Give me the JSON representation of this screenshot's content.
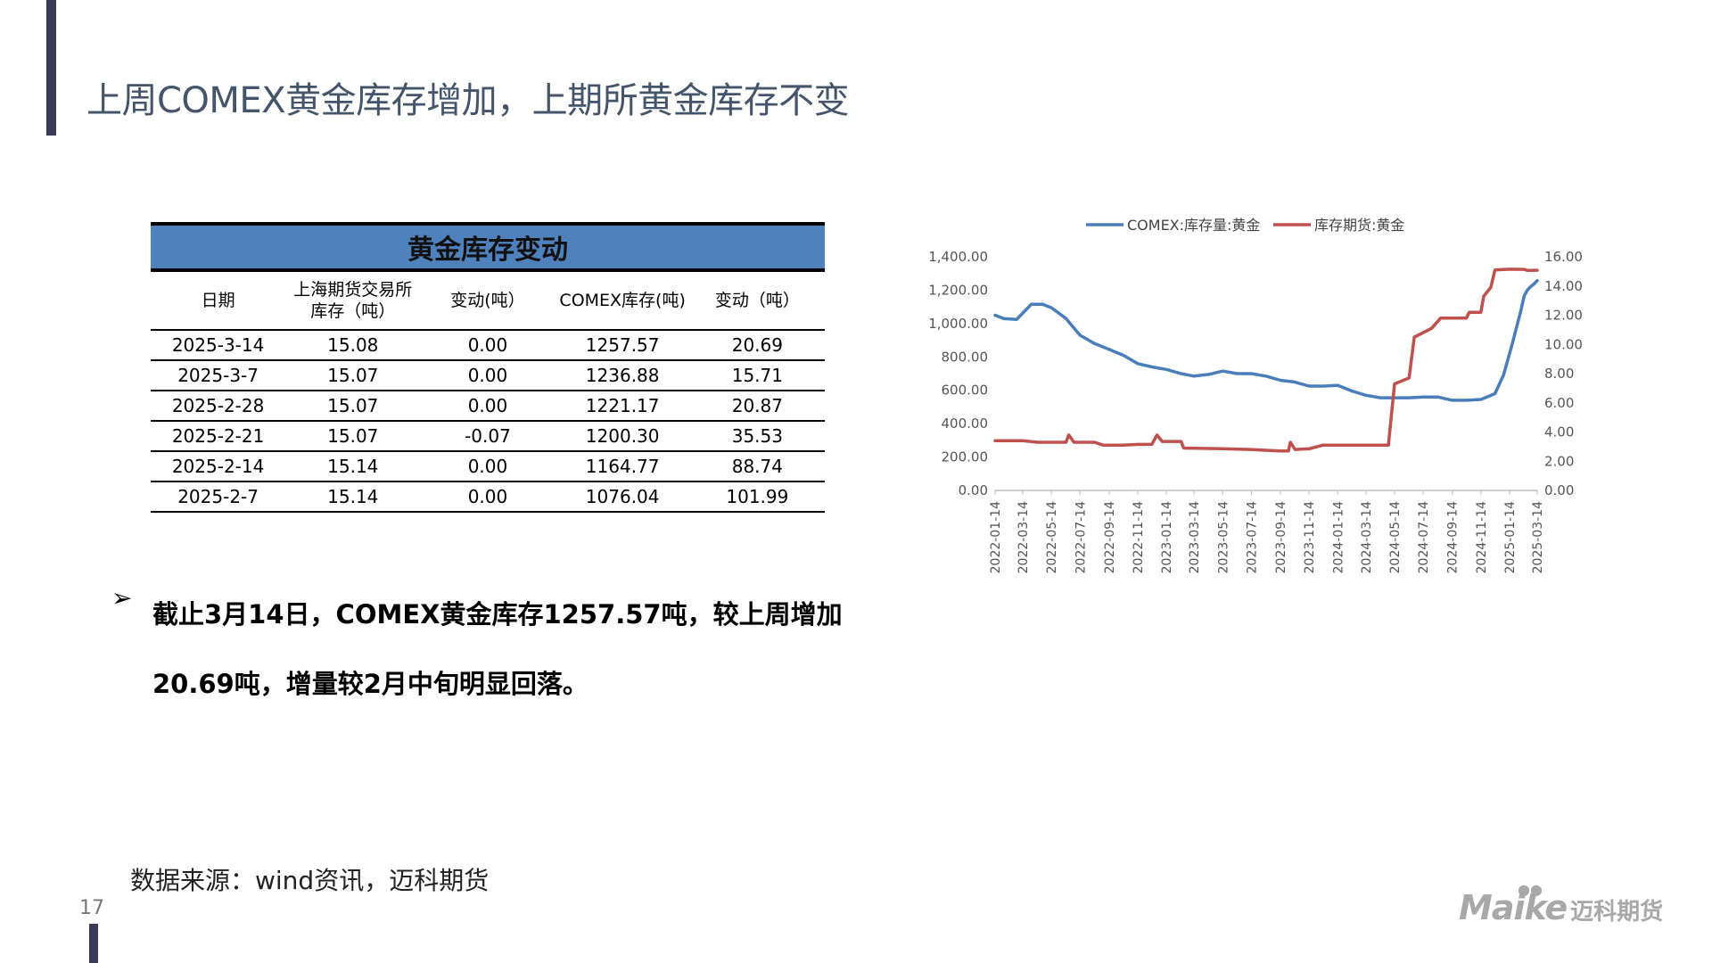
{
  "header": {
    "title": "上周COMEX黄金库存增加，上期所黄金库存不变",
    "page_number": "17"
  },
  "table": {
    "caption": "黄金库存变动",
    "columns": [
      "日期",
      "上海期货交易所库存（吨）",
      "变动(吨）",
      "COMEX库存(吨)",
      "变动（吨）"
    ],
    "rows": [
      [
        "2025-3-14",
        "15.08",
        "0.00",
        "1257.57",
        "20.69"
      ],
      [
        "2025-3-7",
        "15.07",
        "0.00",
        "1236.88",
        "15.71"
      ],
      [
        "2025-2-28",
        "15.07",
        "0.00",
        "1221.17",
        "20.87"
      ],
      [
        "2025-2-21",
        "15.07",
        "-0.07",
        "1200.30",
        "35.53"
      ],
      [
        "2025-2-14",
        "15.14",
        "0.00",
        "1164.77",
        "88.74"
      ],
      [
        "2025-2-7",
        "15.14",
        "0.00",
        "1076.04",
        "101.99"
      ]
    ]
  },
  "bullet": {
    "icon": "arrow-bullet-icon",
    "text": "截止3月14日，COMEX黄金库存1257.57吨，较上周增加20.69吨，增量较2月中旬明显回落。"
  },
  "source": "数据来源：wind资讯，迈科期货",
  "logo": {
    "en": "Maike",
    "cn": "迈科期货"
  },
  "colors": {
    "accent": "#3a3b56",
    "table_header": "#4f81bd",
    "comex": "#4a7ebb",
    "shfe": "#c0504d",
    "title": "#44546a"
  },
  "chart_data": {
    "type": "line",
    "legend_position": "top",
    "grid": false,
    "x_ticks": [
      "2022-01-14",
      "2022-03-14",
      "2022-05-14",
      "2022-07-14",
      "2022-09-14",
      "2022-11-14",
      "2023-01-14",
      "2023-03-14",
      "2023-05-14",
      "2023-07-14",
      "2023-09-14",
      "2023-11-14",
      "2024-01-14",
      "2024-03-14",
      "2024-05-14",
      "2024-07-14",
      "2024-09-14",
      "2024-11-14",
      "2025-01-14",
      "2025-03-14"
    ],
    "y_left": {
      "range": [
        0,
        1400
      ],
      "ticks": [
        "0.00",
        "200.00",
        "400.00",
        "600.00",
        "800.00",
        "1,000.00",
        "1,200.00",
        "1,400.00"
      ]
    },
    "y_right": {
      "range": [
        0,
        16
      ],
      "ticks": [
        "0.00",
        "2.00",
        "4.00",
        "6.00",
        "8.00",
        "10.00",
        "12.00",
        "14.00",
        "16.00"
      ]
    },
    "series": [
      {
        "name": "COMEX:库存量:黄金",
        "axis": "left",
        "points": [
          [
            "2022-01-14",
            1050
          ],
          [
            "2022-02-01",
            1030
          ],
          [
            "2022-03-01",
            1025
          ],
          [
            "2022-03-20",
            1080
          ],
          [
            "2022-04-01",
            1115
          ],
          [
            "2022-04-25",
            1115
          ],
          [
            "2022-05-14",
            1095
          ],
          [
            "2022-06-14",
            1030
          ],
          [
            "2022-07-14",
            930
          ],
          [
            "2022-08-14",
            880
          ],
          [
            "2022-09-14",
            845
          ],
          [
            "2022-10-14",
            810
          ],
          [
            "2022-11-14",
            760
          ],
          [
            "2022-12-14",
            740
          ],
          [
            "2023-01-14",
            725
          ],
          [
            "2023-02-14",
            700
          ],
          [
            "2023-03-14",
            685
          ],
          [
            "2023-04-14",
            695
          ],
          [
            "2023-05-14",
            715
          ],
          [
            "2023-06-14",
            700
          ],
          [
            "2023-07-14",
            700
          ],
          [
            "2023-08-14",
            685
          ],
          [
            "2023-09-14",
            660
          ],
          [
            "2023-10-14",
            650
          ],
          [
            "2023-11-14",
            625
          ],
          [
            "2023-12-14",
            625
          ],
          [
            "2024-01-14",
            630
          ],
          [
            "2024-02-14",
            595
          ],
          [
            "2024-03-14",
            570
          ],
          [
            "2024-04-14",
            555
          ],
          [
            "2024-05-14",
            555
          ],
          [
            "2024-06-14",
            555
          ],
          [
            "2024-07-14",
            560
          ],
          [
            "2024-08-14",
            560
          ],
          [
            "2024-09-14",
            540
          ],
          [
            "2024-10-14",
            540
          ],
          [
            "2024-11-14",
            545
          ],
          [
            "2024-12-14",
            580
          ],
          [
            "2025-01-01",
            690
          ],
          [
            "2025-01-20",
            880
          ],
          [
            "2025-02-07",
            1076.04
          ],
          [
            "2025-02-14",
            1164.77
          ],
          [
            "2025-02-21",
            1200.3
          ],
          [
            "2025-02-28",
            1221.17
          ],
          [
            "2025-03-07",
            1236.88
          ],
          [
            "2025-03-14",
            1257.57
          ]
        ]
      },
      {
        "name": "库存期货:黄金",
        "axis": "right",
        "points": [
          [
            "2022-01-14",
            3.4
          ],
          [
            "2022-03-14",
            3.4
          ],
          [
            "2022-04-14",
            3.3
          ],
          [
            "2022-05-14",
            3.3
          ],
          [
            "2022-06-14",
            3.3
          ],
          [
            "2022-06-20",
            3.8
          ],
          [
            "2022-07-01",
            3.3
          ],
          [
            "2022-08-14",
            3.3
          ],
          [
            "2022-09-01",
            3.1
          ],
          [
            "2022-10-14",
            3.1
          ],
          [
            "2022-11-14",
            3.15
          ],
          [
            "2022-12-14",
            3.15
          ],
          [
            "2022-12-25",
            3.8
          ],
          [
            "2023-01-05",
            3.35
          ],
          [
            "2023-02-14",
            3.35
          ],
          [
            "2023-02-20",
            2.9
          ],
          [
            "2023-05-14",
            2.85
          ],
          [
            "2023-07-14",
            2.8
          ],
          [
            "2023-08-14",
            2.75
          ],
          [
            "2023-09-14",
            2.7
          ],
          [
            "2023-10-01",
            2.7
          ],
          [
            "2023-10-05",
            3.3
          ],
          [
            "2023-10-15",
            2.8
          ],
          [
            "2023-11-14",
            2.85
          ],
          [
            "2023-12-14",
            3.1
          ],
          [
            "2024-01-14",
            3.1
          ],
          [
            "2024-03-14",
            3.1
          ],
          [
            "2024-05-01",
            3.1
          ],
          [
            "2024-05-14",
            7.3
          ],
          [
            "2024-06-14",
            7.7
          ],
          [
            "2024-06-25",
            10.5
          ],
          [
            "2024-07-14",
            10.8
          ],
          [
            "2024-08-01",
            11.1
          ],
          [
            "2024-08-20",
            11.8
          ],
          [
            "2024-10-14",
            11.8
          ],
          [
            "2024-10-20",
            12.2
          ],
          [
            "2024-11-14",
            12.2
          ],
          [
            "2024-11-20",
            13.3
          ],
          [
            "2024-12-05",
            13.9
          ],
          [
            "2024-12-14",
            15.1
          ],
          [
            "2025-01-14",
            15.15
          ],
          [
            "2025-02-14",
            15.14
          ],
          [
            "2025-02-21",
            15.07
          ],
          [
            "2025-03-14",
            15.08
          ]
        ]
      }
    ]
  }
}
